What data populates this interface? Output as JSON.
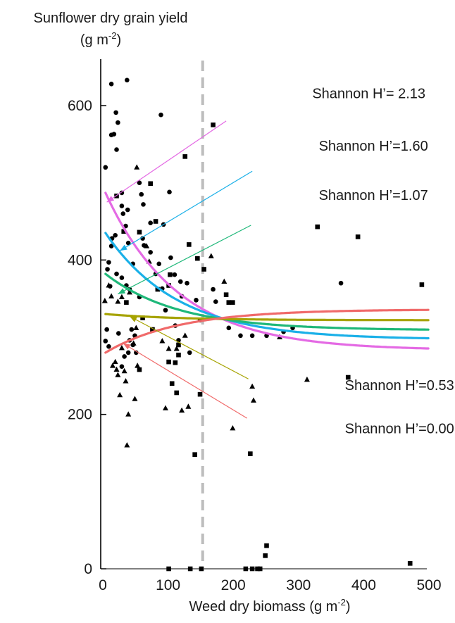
{
  "chart_data": {
    "type": "scatter",
    "title": "",
    "ylabel": {
      "line1": "Sunflower dry grain yield",
      "line2_pre": "(g m",
      "line2_sup": "-2",
      "line2_post": ")"
    },
    "xlabel": {
      "pre": "Weed dry biomass (g m",
      "sup": "-2",
      "post": ")"
    },
    "xlim": [
      0,
      500
    ],
    "ylim": [
      0,
      650
    ],
    "xticks": [
      "0",
      "100",
      "200",
      "300",
      "400",
      "500"
    ],
    "xtick_values": [
      0,
      100,
      200,
      300,
      400,
      500
    ],
    "yticks": [
      "0",
      "200",
      "400",
      "600"
    ],
    "ytick_values": [
      0,
      200,
      400,
      600
    ],
    "threshold_x": 152,
    "grid": false,
    "colors": {
      "h213": "#e46ae4",
      "h160": "#1ab0e8",
      "h107": "#1fb87a",
      "h053": "#a6a300",
      "h000": "#f06a6a",
      "threshold": "#bdbdbd",
      "points": "#000000"
    },
    "curves": [
      {
        "key": "h213",
        "label": "Shannon  H’= 2.13",
        "start": 487,
        "end": 283,
        "k": 0.009,
        "x0": 3
      },
      {
        "key": "h160",
        "label": "Shannon H’=1.60",
        "start": 435,
        "end": 297,
        "k": 0.009,
        "x0": 3
      },
      {
        "key": "h107",
        "label": "Shannon H’=1.07",
        "start": 382,
        "end": 309,
        "k": 0.009,
        "x0": 3
      },
      {
        "key": "h053",
        "label": "Shannon H’=0.53",
        "start": 330,
        "end": 322,
        "k": 0.009,
        "x0": 3
      },
      {
        "key": "h000",
        "label": "Shannon H’=0.00",
        "start": 280,
        "end": 336,
        "k": 0.009,
        "x0": 3
      }
    ],
    "annotations": [
      {
        "key": "h213",
        "label_x": 320,
        "label_y": 616,
        "arrow_from": [
          188,
          580
        ],
        "arrow_to": [
          5,
          475
        ]
      },
      {
        "key": "h160",
        "label_x": 330,
        "label_y": 548,
        "arrow_from": [
          228,
          515
        ],
        "arrow_to": [
          25,
          412
        ]
      },
      {
        "key": "h107",
        "label_x": 330,
        "label_y": 484,
        "arrow_from": [
          226,
          445
        ],
        "arrow_to": [
          22,
          356
        ]
      },
      {
        "key": "h053",
        "label_x": 370,
        "label_y": 238,
        "arrow_from": [
          222,
          246
        ],
        "arrow_to": [
          40,
          327
        ]
      },
      {
        "key": "h000",
        "label_x": 370,
        "label_y": 182,
        "arrow_from": [
          220,
          195
        ],
        "arrow_to": [
          30,
          292
        ]
      }
    ],
    "series": [
      {
        "marker": "circle",
        "points": [
          [
            3,
            520
          ],
          [
            12,
            628
          ],
          [
            12,
            562
          ],
          [
            16,
            563
          ],
          [
            19,
            591
          ],
          [
            20,
            543
          ],
          [
            22,
            578
          ],
          [
            36,
            633
          ],
          [
            28,
            487
          ],
          [
            28,
            470
          ],
          [
            30,
            460
          ],
          [
            34,
            444
          ],
          [
            37,
            465
          ],
          [
            38,
            422
          ],
          [
            18,
            432
          ],
          [
            13,
            428
          ],
          [
            12,
            418
          ],
          [
            8,
            397
          ],
          [
            6,
            388
          ],
          [
            10,
            366
          ],
          [
            20,
            382
          ],
          [
            28,
            377
          ],
          [
            35,
            367
          ],
          [
            40,
            362
          ],
          [
            45,
            395
          ],
          [
            55,
            352
          ],
          [
            60,
            428
          ],
          [
            62,
            419
          ],
          [
            72,
            410
          ],
          [
            80,
            382
          ],
          [
            90,
            363
          ],
          [
            95,
            335
          ],
          [
            110,
            315
          ],
          [
            115,
            296
          ],
          [
            55,
            500
          ],
          [
            58,
            485
          ],
          [
            61,
            472
          ],
          [
            72,
            448
          ],
          [
            85,
            395
          ],
          [
            88,
            588
          ],
          [
            92,
            446
          ],
          [
            101,
            488
          ],
          [
            103,
            403
          ],
          [
            109,
            381
          ],
          [
            118,
            372
          ],
          [
            120,
            353
          ],
          [
            128,
            370
          ],
          [
            142,
            348
          ],
          [
            148,
            322
          ],
          [
            168,
            362
          ],
          [
            172,
            346
          ],
          [
            192,
            312
          ],
          [
            210,
            302
          ],
          [
            228,
            302
          ],
          [
            250,
            302
          ],
          [
            276,
            307
          ],
          [
            290,
            312
          ],
          [
            364,
            370
          ],
          [
            132,
            280
          ],
          [
            40,
            296
          ],
          [
            45,
            290
          ],
          [
            50,
            280
          ],
          [
            38,
            280
          ],
          [
            32,
            275
          ],
          [
            28,
            262
          ],
          [
            5,
            310
          ],
          [
            3,
            295
          ],
          [
            8,
            288
          ],
          [
            23,
            305
          ],
          [
            43,
            310
          ],
          [
            48,
            302
          ]
        ]
      },
      {
        "marker": "square",
        "points": [
          [
            20,
            483
          ],
          [
            31,
            437
          ],
          [
            55,
            436
          ],
          [
            72,
            499
          ],
          [
            80,
            450
          ],
          [
            83,
            362
          ],
          [
            100,
            367
          ],
          [
            102,
            381
          ],
          [
            131,
            420
          ],
          [
            144,
            402
          ],
          [
            154,
            388
          ],
          [
            168,
            575
          ],
          [
            188,
            355
          ],
          [
            192,
            345
          ],
          [
            198,
            345
          ],
          [
            328,
            443
          ],
          [
            390,
            430
          ],
          [
            488,
            368
          ],
          [
            125,
            534
          ],
          [
            115,
            277
          ],
          [
            110,
            267
          ],
          [
            105,
            240
          ],
          [
            112,
            228
          ],
          [
            100,
            268
          ],
          [
            55,
            258
          ],
          [
            60,
            325
          ],
          [
            75,
            310
          ],
          [
            115,
            290
          ],
          [
            140,
            148
          ],
          [
            148,
            226
          ],
          [
            225,
            149
          ],
          [
            250,
            30
          ],
          [
            248,
            17
          ],
          [
            470,
            7
          ],
          [
            375,
            248
          ],
          [
            35,
            345
          ]
        ]
      },
      {
        "marker": "triangle",
        "points": [
          [
            2,
            347
          ],
          [
            8,
            367
          ],
          [
            12,
            353
          ],
          [
            22,
            346
          ],
          [
            28,
            352
          ],
          [
            40,
            358
          ],
          [
            51,
            520
          ],
          [
            66,
            418
          ],
          [
            70,
            398
          ],
          [
            90,
            295
          ],
          [
            100,
            285
          ],
          [
            112,
            285
          ],
          [
            125,
            302
          ],
          [
            130,
            210
          ],
          [
            95,
            208
          ],
          [
            120,
            205
          ],
          [
            165,
            405
          ],
          [
            185,
            372
          ],
          [
            198,
            182
          ],
          [
            228,
            236
          ],
          [
            230,
            218
          ],
          [
            270,
            300
          ],
          [
            312,
            245
          ],
          [
            50,
            312
          ],
          [
            48,
            220
          ],
          [
            18,
            268
          ],
          [
            20,
            258
          ],
          [
            22,
            251
          ],
          [
            25,
            225
          ],
          [
            28,
            286
          ],
          [
            32,
            256
          ],
          [
            34,
            243
          ],
          [
            36,
            160
          ],
          [
            38,
            200
          ],
          [
            14,
            263
          ],
          [
            46,
            292
          ],
          [
            52,
            263
          ]
        ]
      },
      {
        "marker": "square-zero",
        "points": [
          [
            100,
            0
          ],
          [
            133,
            0
          ],
          [
            150,
            0
          ],
          [
            218,
            0
          ],
          [
            228,
            0
          ],
          [
            236,
            0
          ],
          [
            240,
            0
          ]
        ]
      }
    ]
  }
}
